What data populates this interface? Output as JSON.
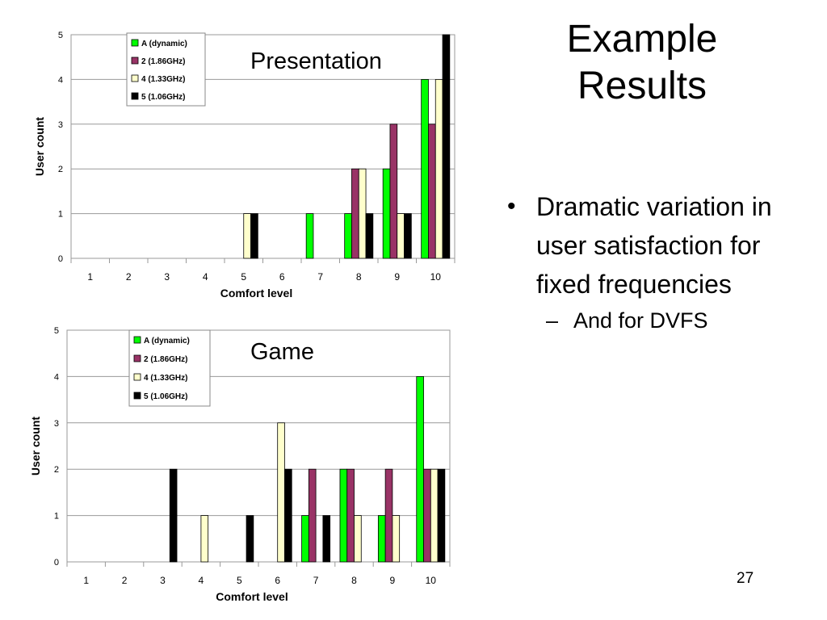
{
  "slide": {
    "title": "Example Results",
    "bullets": [
      {
        "text": "Dramatic variation in user satisfaction for fixed frequencies",
        "sub": [
          "And for DVFS"
        ]
      }
    ],
    "page_number": "27"
  },
  "chart_data": [
    {
      "type": "bar",
      "title": "Presentation",
      "xlabel": "Comfort level",
      "ylabel": "User count",
      "ylim": [
        0,
        5
      ],
      "grid": true,
      "legend_position": "top-left",
      "categories": [
        "1",
        "2",
        "3",
        "4",
        "5",
        "6",
        "7",
        "8",
        "9",
        "10"
      ],
      "series": [
        {
          "name": "A (dynamic)",
          "color": "#00ff00",
          "values": [
            0,
            0,
            0,
            0,
            0,
            0,
            1,
            1,
            2,
            4
          ]
        },
        {
          "name": "2 (1.86GHz)",
          "color": "#993366",
          "values": [
            0,
            0,
            0,
            0,
            0,
            0,
            0,
            2,
            3,
            3
          ]
        },
        {
          "name": "4 (1.33GHz)",
          "color": "#ffffcc",
          "values": [
            0,
            0,
            0,
            0,
            1,
            0,
            0,
            2,
            1,
            4
          ]
        },
        {
          "name": "5 (1.06GHz)",
          "color": "#000000",
          "values": [
            0,
            0,
            0,
            0,
            1,
            0,
            0,
            1,
            1,
            5
          ]
        }
      ]
    },
    {
      "type": "bar",
      "title": "Game",
      "xlabel": "Comfort level",
      "ylabel": "User count",
      "ylim": [
        0,
        5
      ],
      "grid": true,
      "legend_position": "top-left",
      "categories": [
        "1",
        "2",
        "3",
        "4",
        "5",
        "6",
        "7",
        "8",
        "9",
        "10"
      ],
      "series": [
        {
          "name": "A (dynamic)",
          "color": "#00ff00",
          "values": [
            0,
            0,
            0,
            0,
            0,
            0,
            1,
            2,
            1,
            4
          ]
        },
        {
          "name": "2 (1.86GHz)",
          "color": "#993366",
          "values": [
            0,
            0,
            0,
            0,
            0,
            0,
            2,
            2,
            2,
            2
          ]
        },
        {
          "name": "4 (1.33GHz)",
          "color": "#ffffcc",
          "values": [
            0,
            0,
            0,
            1,
            0,
            3,
            0,
            1,
            1,
            2
          ]
        },
        {
          "name": "5 (1.06GHz)",
          "color": "#000000",
          "values": [
            0,
            0,
            2,
            0,
            1,
            2,
            1,
            0,
            0,
            2
          ]
        }
      ]
    }
  ]
}
